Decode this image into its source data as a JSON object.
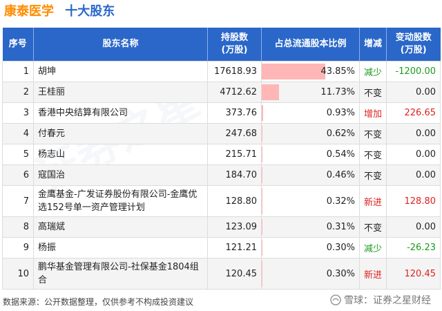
{
  "header": {
    "company": "康泰医学",
    "title": "十大股东"
  },
  "columns": {
    "index": "序号",
    "name": "股东名称",
    "shares_l1": "持股数",
    "shares_l2": "(万股)",
    "ratio": "占总流通股本比例",
    "change": "增减",
    "delta_l1": "变动股数",
    "delta_l2": "(万股)"
  },
  "rows": [
    {
      "index": "1",
      "name": "胡坤",
      "shares": "17618.93",
      "ratio": "43.85%",
      "ratio_value": 43.85,
      "change": "减少",
      "delta": "-1200.00"
    },
    {
      "index": "2",
      "name": "王桂丽",
      "shares": "4712.62",
      "ratio": "11.73%",
      "ratio_value": 11.73,
      "change": "不变",
      "delta": "0.00"
    },
    {
      "index": "3",
      "name": "香港中央结算有限公司",
      "shares": "373.76",
      "ratio": "0.93%",
      "ratio_value": 0.93,
      "change": "增加",
      "delta": "226.65"
    },
    {
      "index": "4",
      "name": "付春元",
      "shares": "247.68",
      "ratio": "0.62%",
      "ratio_value": 0.62,
      "change": "不变",
      "delta": "0.00"
    },
    {
      "index": "5",
      "name": "杨志山",
      "shares": "215.71",
      "ratio": "0.54%",
      "ratio_value": 0.54,
      "change": "不变",
      "delta": "0.00"
    },
    {
      "index": "6",
      "name": "寇国治",
      "shares": "184.70",
      "ratio": "0.46%",
      "ratio_value": 0.46,
      "change": "不变",
      "delta": "0.00"
    },
    {
      "index": "7",
      "name": "金鹰基金-广发证券股份有限公司-金鹰优选152号单一资产管理计划",
      "shares": "128.80",
      "ratio": "0.32%",
      "ratio_value": 0.32,
      "change": "新进",
      "delta": "128.80"
    },
    {
      "index": "8",
      "name": "高瑞斌",
      "shares": "123.09",
      "ratio": "0.31%",
      "ratio_value": 0.31,
      "change": "不变",
      "delta": "0.00"
    },
    {
      "index": "9",
      "name": "杨振",
      "shares": "121.21",
      "ratio": "0.30%",
      "ratio_value": 0.3,
      "change": "减少",
      "delta": "-26.23"
    },
    {
      "index": "10",
      "name": "鹏华基金管理有限公司-社保基金1804组合",
      "shares": "120.45",
      "ratio": "0.30%",
      "ratio_value": 0.3,
      "change": "新进",
      "delta": "120.45"
    }
  ],
  "footer": {
    "source": "数据来源：公开数据整理，仅供参考不构成投资建议",
    "brand": "雪球：证券之星财经"
  },
  "watermark": "证券之星",
  "colors": {
    "header_bg": "#2a67c9",
    "company": "#ff8c00",
    "bar": "#ffb6b6",
    "up": "#e02020",
    "down": "#1a9a1a"
  }
}
